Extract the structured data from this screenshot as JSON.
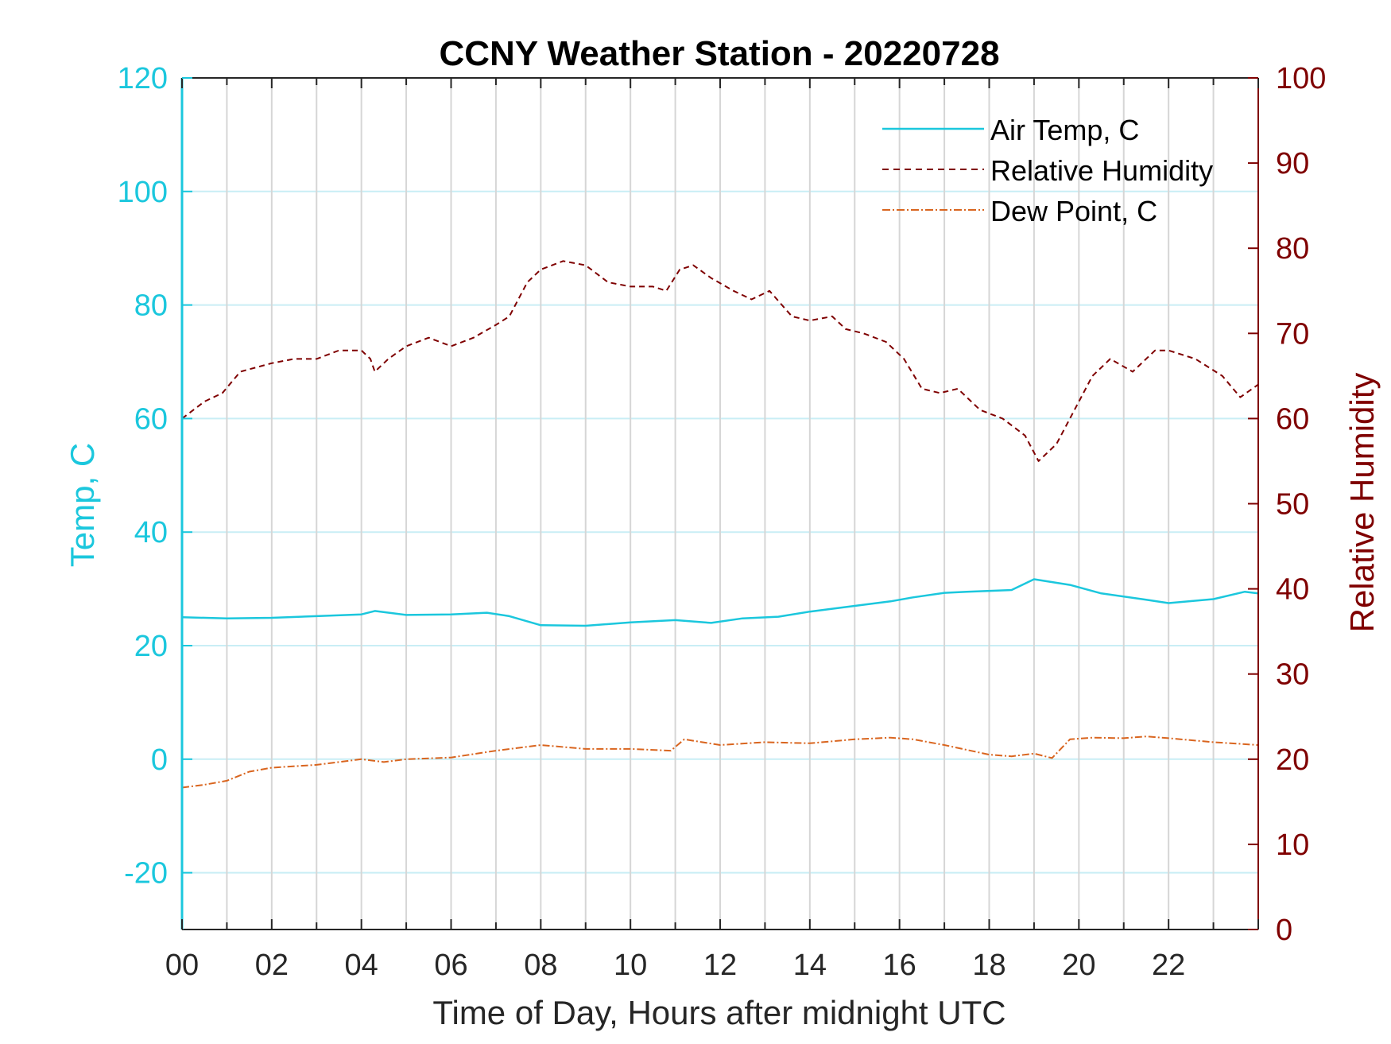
{
  "chart_data": {
    "type": "line",
    "title": "CCNY Weather Station - 20220728",
    "xlabel": "Time of Day, Hours after midnight UTC",
    "ylabel_left": "Temp, C",
    "ylabel_right": "Relative Humidity",
    "xlim": [
      0,
      24
    ],
    "ylim_left": [
      -30,
      120
    ],
    "ylim_right": [
      0,
      100
    ],
    "x_ticks": [
      "00",
      "02",
      "04",
      "06",
      "08",
      "10",
      "12",
      "14",
      "16",
      "18",
      "20",
      "22"
    ],
    "x_tick_values": [
      0,
      2,
      4,
      6,
      8,
      10,
      12,
      14,
      16,
      18,
      20,
      22
    ],
    "y_ticks_left": [
      "-20",
      "0",
      "20",
      "40",
      "60",
      "80",
      "100",
      "120"
    ],
    "y_tick_values_left": [
      -20,
      0,
      20,
      40,
      60,
      80,
      100,
      120
    ],
    "y_ticks_right": [
      "0",
      "10",
      "20",
      "30",
      "40",
      "50",
      "60",
      "70",
      "80",
      "90",
      "100"
    ],
    "y_tick_values_right": [
      0,
      10,
      20,
      30,
      40,
      50,
      60,
      70,
      80,
      90,
      100
    ],
    "grid": "vertical lines every hour, horizontal lines at left ticks",
    "legend_position": "top-right",
    "colors": {
      "temp": "#1bc7dd",
      "rh": "#7f0000",
      "dew": "#d9651f",
      "grid": "#d6d6d6",
      "hgrid": "#c9eef5"
    },
    "series": [
      {
        "name": "Air Temp, C",
        "axis": "left",
        "style": "solid",
        "x": [
          0,
          1,
          2,
          3,
          4,
          4.3,
          5,
          6,
          6.8,
          7.3,
          8,
          9,
          10,
          11,
          11.8,
          12.5,
          13.3,
          14,
          15,
          15.8,
          16.3,
          17,
          17.5,
          18.5,
          19,
          19.8,
          20.5,
          21.5,
          22,
          23,
          23.7,
          24
        ],
        "values": [
          25,
          24.8,
          24.9,
          25.2,
          25.5,
          26.1,
          25.4,
          25.5,
          25.8,
          25.2,
          23.6,
          23.5,
          24.1,
          24.5,
          24,
          24.8,
          25.1,
          26,
          27,
          27.8,
          28.5,
          29.3,
          29.5,
          29.8,
          31.7,
          30.7,
          29.2,
          28.1,
          27.5,
          28.2,
          29.5,
          29.2
        ]
      },
      {
        "name": "Relative Humidity",
        "axis": "right",
        "style": "dashed",
        "x": [
          0,
          0.5,
          0.9,
          1.3,
          2,
          2.5,
          3,
          3.5,
          4,
          4.2,
          4.3,
          4.6,
          5,
          5.5,
          6,
          6.5,
          7,
          7.3,
          7.7,
          8,
          8.5,
          9,
          9.5,
          10,
          10.5,
          10.8,
          11.1,
          11.4,
          11.8,
          12.3,
          12.7,
          13.1,
          13.6,
          14,
          14.5,
          14.8,
          15.2,
          15.7,
          16.1,
          16.5,
          16.9,
          17.3,
          17.8,
          18.3,
          18.8,
          19.1,
          19.5,
          19.9,
          20.3,
          20.7,
          21.2,
          21.7,
          22,
          22.6,
          23.2,
          23.6,
          24
        ],
        "values": [
          60,
          62,
          63,
          65.5,
          66.5,
          67,
          67,
          68,
          68,
          67,
          65.5,
          67,
          68.5,
          69.5,
          68.5,
          69.5,
          71,
          72,
          76,
          77.5,
          78.5,
          78,
          76,
          75.5,
          75.5,
          75,
          77.5,
          78,
          76.5,
          75,
          74,
          75,
          72,
          71.5,
          72,
          70.5,
          70,
          69,
          67,
          63.5,
          63,
          63.5,
          61,
          60,
          58,
          55,
          57,
          61,
          65,
          67,
          65.5,
          68,
          68,
          67,
          65,
          62.5,
          64
        ]
      },
      {
        "name": "Dew Point, C",
        "axis": "left",
        "style": "dash-dot",
        "x": [
          0,
          0.5,
          1,
          1.5,
          2,
          3,
          4,
          4.5,
          5,
          6,
          7,
          8,
          9,
          10,
          10.9,
          11.2,
          12,
          13,
          14,
          15,
          15.8,
          16.3,
          17,
          18,
          18.5,
          19,
          19.4,
          19.8,
          20.3,
          21,
          21.5,
          22,
          23,
          24
        ],
        "values": [
          -5,
          -4.5,
          -3.8,
          -2.2,
          -1.5,
          -1,
          0,
          -0.5,
          0,
          0.3,
          1.5,
          2.5,
          1.8,
          1.8,
          1.5,
          3.5,
          2.5,
          3,
          2.8,
          3.5,
          3.8,
          3.5,
          2.5,
          0.8,
          0.5,
          1,
          0.2,
          3.5,
          3.8,
          3.7,
          4,
          3.7,
          3,
          2.5
        ]
      }
    ]
  }
}
